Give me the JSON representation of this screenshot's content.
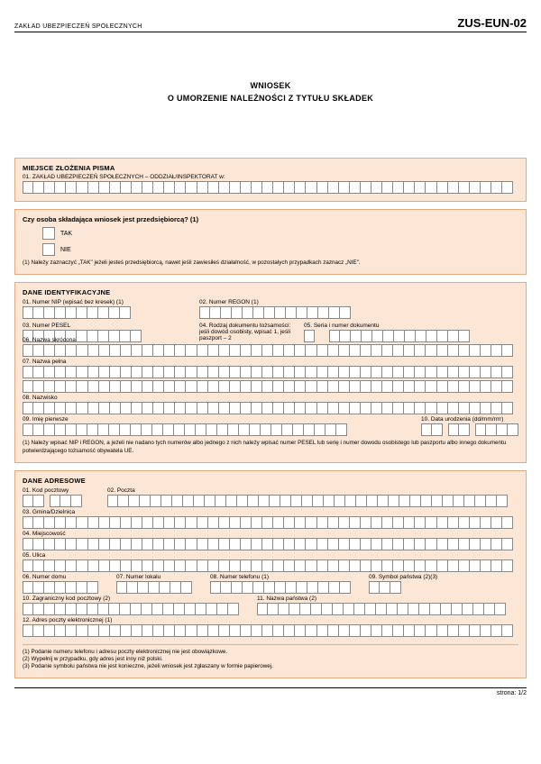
{
  "header": {
    "org": "ZAKŁAD UBEZPIECZEŃ SPOŁECZNYCH",
    "code": "ZUS-EUN-02"
  },
  "title": {
    "l1": "WNIOSEK",
    "l2": "O  UMORZENIE  NALEŻNOŚCI  Z  TYTUŁU  SKŁADEK"
  },
  "s1": {
    "head": "MIEJSCE  ZŁOŻENIA  PISMA",
    "f01": "01. ZAKŁAD  UBEZPIECZEŃ  SPOŁECZNYCH – ODDZIAŁ/INSPEKTORAT w:"
  },
  "s2": {
    "q": "Czy osoba składająca wniosek jest przedsiębiorcą? (1)",
    "yes": "TAK",
    "no": "NIE",
    "note": "(1) Należy zaznaczyć „TAK\" jeżeli jesteś przedsiębiorcą, nawet jeśli zawiesiłeś działalność, w pozostałych przypadkach zaznacz „NIE\"."
  },
  "s3": {
    "head": "DANE  IDENTYFIKACYJNE",
    "f01": "01. Numer NIP (wpisać bez kresek) (1)",
    "f02": "02. Numer REGON (1)",
    "f03": "03. Numer PESEL",
    "f04": "04. Rodzaj dokumentu tożsamości: jeśli dowód osobisty, wpisać 1, jeśli paszport – 2",
    "f05": "05. Seria i numer dokumentu",
    "f06": "06. Nazwa skrócona",
    "f07": "07. Nazwa pełna",
    "f08": "08. Nazwisko",
    "f09": "09. Imię pierwsze",
    "f10": "10. Data urodzenia (dd/mm/rrrr)",
    "note": "(1) Należy wpisać NIP i REGON, a jeżeli nie nadano tych numerów albo jednego z nich należy wpisać numer PESEL lub serię i numer dowodu osobistego lub paszportu albo innego dokumentu potwierdzającego tożsamość obywatela UE."
  },
  "s4": {
    "head": "DANE  ADRESOWE",
    "f01": "01. Kod pocztowy",
    "f02": "02. Poczta",
    "f03": "03. Gmina/Dzielnica",
    "f04": "04. Miejscowość",
    "f05": "05. Ulica",
    "f06": "06. Numer domu",
    "f07": "07. Numer lokalu",
    "f08": "08. Numer telefonu (1)",
    "f09": "09. Symbol państwa (2)(3)",
    "f10": "10. Zagraniczny kod pocztowy (2)",
    "f11": "11. Nazwa państwa (2)",
    "f12": "12. Adres poczty elektronicznej (1)",
    "n1": "(1) Podanie numeru telefonu i adresu poczty elektronicznej nie jest obowiązkowe.",
    "n2": "(2) Wypełnij w przypadku, gdy adres jest inny niż polski.",
    "n3": "(3) Podanie symbolu państwa nie jest konieczne, jeżeli wniosek jest zgłaszany w formie papierowej."
  },
  "footer": {
    "page": "strona: 1/2"
  },
  "style": {
    "bg": "#fce7d7",
    "border": "#e7a87e",
    "cell_border": "#888"
  }
}
